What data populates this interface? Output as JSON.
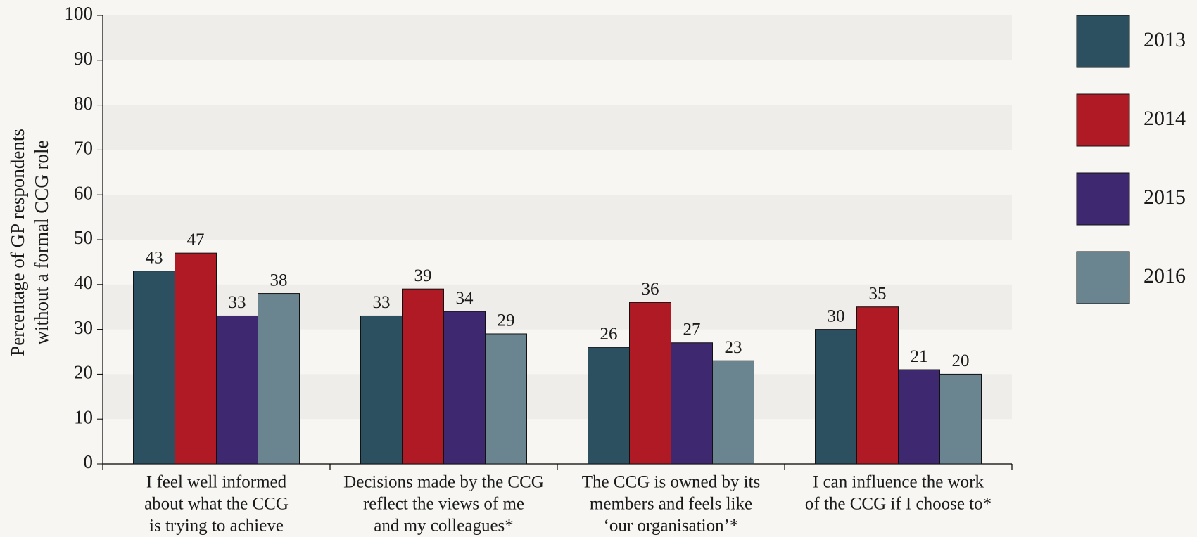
{
  "chart_data": {
    "type": "bar",
    "ylabel": [
      "Percentage of GP respondents",
      "without a formal CCG role"
    ],
    "categories": [
      [
        "I feel well informed",
        "about what the CCG",
        "is trying to achieve"
      ],
      [
        "Decisions made by the CCG",
        "reflect the views of me",
        "and my colleagues*"
      ],
      [
        "The CCG is owned by its",
        "members and feels like",
        "‘our organisation’*"
      ],
      [
        "I can influence the work",
        "of the CCG if I choose to*"
      ]
    ],
    "series": [
      {
        "name": "2013",
        "color": "#2c5060",
        "values": [
          43,
          33,
          26,
          30
        ]
      },
      {
        "name": "2014",
        "color": "#af1a25",
        "values": [
          47,
          39,
          36,
          35
        ]
      },
      {
        "name": "2015",
        "color": "#3e2870",
        "values": [
          33,
          34,
          27,
          21
        ]
      },
      {
        "name": "2016",
        "color": "#6b8590",
        "values": [
          38,
          29,
          23,
          20
        ]
      }
    ],
    "ylim": [
      0,
      100
    ],
    "yticks": [
      0,
      10,
      20,
      30,
      40,
      50,
      60,
      70,
      80,
      90,
      100
    ],
    "banded_background": true,
    "legend": "right"
  }
}
